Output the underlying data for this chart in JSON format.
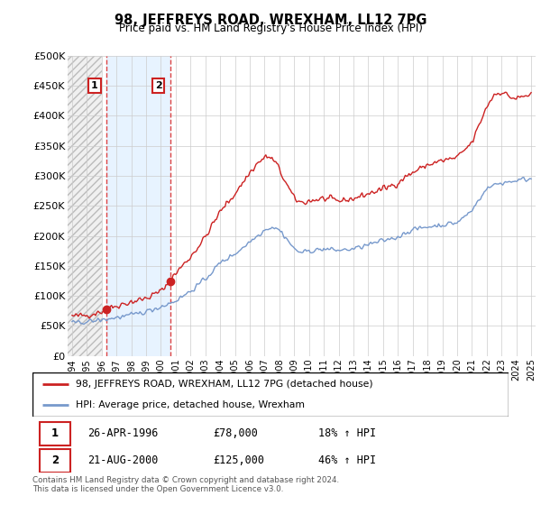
{
  "title": "98, JEFFREYS ROAD, WREXHAM, LL12 7PG",
  "subtitle": "Price paid vs. HM Land Registry's House Price Index (HPI)",
  "ylabel_ticks": [
    "£0",
    "£50K",
    "£100K",
    "£150K",
    "£200K",
    "£250K",
    "£300K",
    "£350K",
    "£400K",
    "£450K",
    "£500K"
  ],
  "ylim": [
    0,
    500000
  ],
  "xlim_start": 1993.7,
  "xlim_end": 2025.3,
  "sale1_date": 1996.32,
  "sale1_price": 78000,
  "sale1_label": "1",
  "sale2_date": 2000.64,
  "sale2_price": 125000,
  "sale2_label": "2",
  "property_color": "#cc2222",
  "hpi_color": "#7799cc",
  "vline_color": "#dd4444",
  "hatch_end": 1996.0,
  "blue_shade_start": 1996.32,
  "blue_shade_end": 2000.64,
  "legend_property": "98, JEFFREYS ROAD, WREXHAM, LL12 7PG (detached house)",
  "legend_hpi": "HPI: Average price, detached house, Wrexham",
  "table_row1": [
    "1",
    "26-APR-1996",
    "£78,000",
    "18% ↑ HPI"
  ],
  "table_row2": [
    "2",
    "21-AUG-2000",
    "£125,000",
    "46% ↑ HPI"
  ],
  "footer": "Contains HM Land Registry data © Crown copyright and database right 2024.\nThis data is licensed under the Open Government Licence v3.0.",
  "xtick_years": [
    1994,
    1995,
    1996,
    1997,
    1998,
    1999,
    2000,
    2001,
    2002,
    2003,
    2004,
    2005,
    2006,
    2007,
    2008,
    2009,
    2010,
    2011,
    2012,
    2013,
    2014,
    2015,
    2016,
    2017,
    2018,
    2019,
    2020,
    2021,
    2022,
    2023,
    2024,
    2025
  ]
}
